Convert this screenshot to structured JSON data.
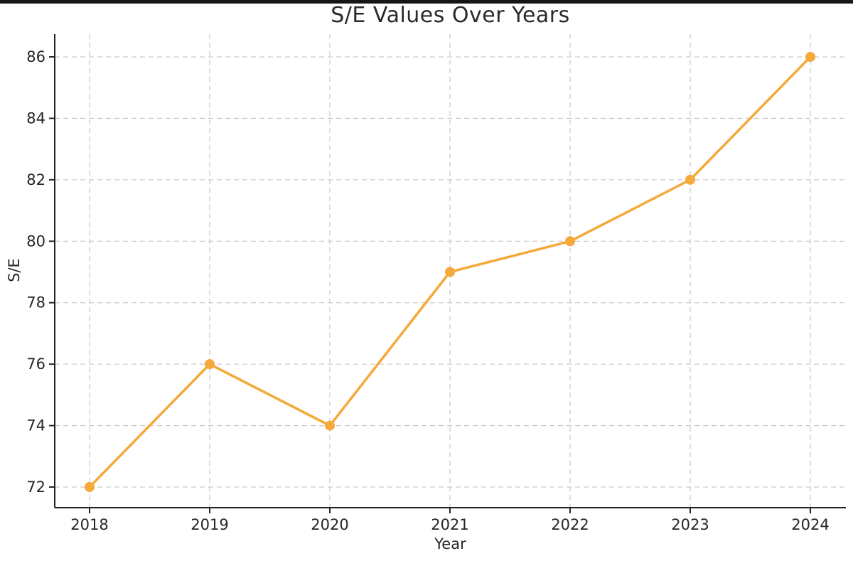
{
  "window": {
    "top_bar_color": "#161616",
    "background_color": "#ffffff"
  },
  "chart_data": {
    "type": "line",
    "title": "S/E Values Over Years",
    "xlabel": "Year",
    "ylabel": "S/E",
    "categories": [
      "2018",
      "2019",
      "2020",
      "2021",
      "2022",
      "2023",
      "2024"
    ],
    "series": [
      {
        "name": "S/E",
        "values": [
          72,
          76,
          74,
          79,
          80,
          82,
          86
        ]
      }
    ],
    "y_ticks": [
      72,
      74,
      76,
      78,
      80,
      82,
      84,
      86
    ],
    "ylim": [
      71.3,
      86.8
    ],
    "xlim_years": [
      2017.7,
      2024.3
    ],
    "grid": true,
    "grid_style": "dashed",
    "legend_position": "none",
    "line_color": "#F5A93A",
    "marker": "circle",
    "marker_color": "#F5A93A",
    "grid_color": "#CBCBCB",
    "spine_color": "#222222",
    "tick_color": "#262626",
    "text_color": "#262626",
    "plot_background": "#FFFFFF"
  }
}
